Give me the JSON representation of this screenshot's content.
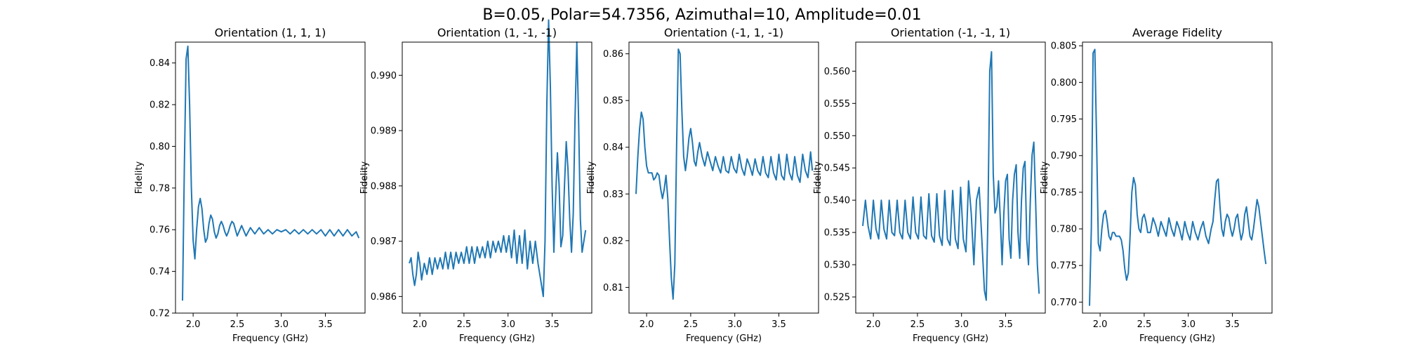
{
  "figure": {
    "suptitle": "B=0.05, Polar=54.7356, Azimuthal=10, Amplitude=0.01",
    "line_color": "#1f77b4"
  },
  "chart_data": [
    {
      "type": "line",
      "title": "Orientation (1, 1, 1)",
      "xlabel": "Frequency (GHz)",
      "ylabel": "Fidelity",
      "xlim": [
        1.8,
        3.95
      ],
      "ylim": [
        0.72,
        0.85
      ],
      "xticks": [
        2.0,
        2.5,
        3.0,
        3.5
      ],
      "xtick_labels": [
        "2.0",
        "2.5",
        "3.0",
        "3.5"
      ],
      "yticks": [
        0.72,
        0.74,
        0.76,
        0.78,
        0.8,
        0.82,
        0.84
      ],
      "ytick_labels": [
        "0.72",
        "0.74",
        "0.76",
        "0.78",
        "0.80",
        "0.82",
        "0.84"
      ],
      "series": [
        {
          "x": [
            1.88,
            1.9,
            1.92,
            1.94,
            1.96,
            1.98,
            2.0,
            2.02,
            2.04,
            2.06,
            2.08,
            2.1,
            2.12,
            2.14,
            2.16,
            2.18,
            2.2,
            2.22,
            2.24,
            2.26,
            2.28,
            2.3,
            2.32,
            2.34,
            2.36,
            2.38,
            2.4,
            2.42,
            2.44,
            2.46,
            2.48,
            2.5,
            2.55,
            2.6,
            2.65,
            2.7,
            2.75,
            2.8,
            2.85,
            2.9,
            2.95,
            3.0,
            3.05,
            3.1,
            3.15,
            3.2,
            3.25,
            3.3,
            3.35,
            3.4,
            3.45,
            3.5,
            3.55,
            3.6,
            3.65,
            3.7,
            3.75,
            3.8,
            3.85,
            3.88
          ],
          "y": [
            0.726,
            0.79,
            0.842,
            0.848,
            0.82,
            0.78,
            0.755,
            0.746,
            0.76,
            0.771,
            0.775,
            0.77,
            0.76,
            0.754,
            0.756,
            0.763,
            0.767,
            0.765,
            0.759,
            0.756,
            0.758,
            0.762,
            0.764,
            0.762,
            0.759,
            0.757,
            0.759,
            0.762,
            0.764,
            0.763,
            0.76,
            0.757,
            0.762,
            0.757,
            0.761,
            0.758,
            0.761,
            0.758,
            0.76,
            0.758,
            0.76,
            0.759,
            0.76,
            0.758,
            0.76,
            0.758,
            0.76,
            0.758,
            0.76,
            0.758,
            0.76,
            0.757,
            0.76,
            0.757,
            0.76,
            0.757,
            0.76,
            0.757,
            0.759,
            0.756
          ]
        }
      ]
    },
    {
      "type": "line",
      "title": "Orientation (1, -1, -1)",
      "xlabel": "Frequency (GHz)",
      "ylabel": "Fidelity",
      "xlim": [
        1.8,
        3.95
      ],
      "ylim": [
        0.9857,
        0.9906
      ],
      "xticks": [
        2.0,
        2.5,
        3.0,
        3.5
      ],
      "xtick_labels": [
        "2.0",
        "2.5",
        "3.0",
        "3.5"
      ],
      "yticks": [
        0.986,
        0.987,
        0.988,
        0.989,
        0.99
      ],
      "ytick_labels": [
        "0.986",
        "0.987",
        "0.988",
        "0.989",
        "0.990"
      ],
      "series": [
        {
          "x": [
            1.88,
            1.9,
            1.92,
            1.94,
            1.96,
            1.98,
            2.0,
            2.02,
            2.05,
            2.08,
            2.11,
            2.14,
            2.17,
            2.2,
            2.23,
            2.26,
            2.29,
            2.32,
            2.35,
            2.38,
            2.41,
            2.44,
            2.47,
            2.5,
            2.53,
            2.56,
            2.59,
            2.62,
            2.65,
            2.68,
            2.71,
            2.74,
            2.77,
            2.8,
            2.83,
            2.86,
            2.89,
            2.92,
            2.95,
            2.98,
            3.01,
            3.04,
            3.07,
            3.1,
            3.13,
            3.16,
            3.19,
            3.22,
            3.25,
            3.28,
            3.31,
            3.34,
            3.37,
            3.4,
            3.42,
            3.44,
            3.46,
            3.48,
            3.5,
            3.52,
            3.54,
            3.56,
            3.58,
            3.6,
            3.62,
            3.64,
            3.66,
            3.68,
            3.7,
            3.72,
            3.74,
            3.76,
            3.78,
            3.8,
            3.82,
            3.84,
            3.86,
            3.88
          ],
          "y": [
            0.9866,
            0.9867,
            0.9864,
            0.9862,
            0.9864,
            0.9868,
            0.9866,
            0.9863,
            0.9866,
            0.9864,
            0.9867,
            0.9864,
            0.9867,
            0.9865,
            0.9867,
            0.9865,
            0.9868,
            0.9865,
            0.9868,
            0.9865,
            0.9868,
            0.9866,
            0.9868,
            0.9866,
            0.9869,
            0.9866,
            0.9869,
            0.9866,
            0.9869,
            0.9867,
            0.9869,
            0.9867,
            0.987,
            0.9867,
            0.987,
            0.9868,
            0.987,
            0.9868,
            0.9871,
            0.9868,
            0.9871,
            0.9867,
            0.9872,
            0.9866,
            0.9871,
            0.9866,
            0.9872,
            0.9865,
            0.987,
            0.9866,
            0.987,
            0.9866,
            0.9863,
            0.986,
            0.987,
            0.9895,
            0.991,
            0.9898,
            0.988,
            0.9868,
            0.9878,
            0.9886,
            0.988,
            0.9869,
            0.9871,
            0.988,
            0.9888,
            0.9883,
            0.9874,
            0.9868,
            0.9875,
            0.9892,
            0.9906,
            0.9892,
            0.9874,
            0.9868,
            0.987,
            0.9872
          ]
        }
      ]
    },
    {
      "type": "line",
      "title": "Orientation (-1, 1, -1)",
      "xlabel": "Frequency (GHz)",
      "ylabel": "Fidelity",
      "xlim": [
        1.8,
        3.95
      ],
      "ylim": [
        0.8045,
        0.8625
      ],
      "xticks": [
        2.0,
        2.5,
        3.0,
        3.5
      ],
      "xtick_labels": [
        "2.0",
        "2.5",
        "3.0",
        "3.5"
      ],
      "yticks": [
        0.81,
        0.82,
        0.83,
        0.84,
        0.85,
        0.86
      ],
      "ytick_labels": [
        "0.81",
        "0.82",
        "0.83",
        "0.84",
        "0.85",
        "0.86"
      ],
      "series": [
        {
          "x": [
            1.88,
            1.9,
            1.92,
            1.94,
            1.96,
            1.98,
            2.0,
            2.02,
            2.04,
            2.06,
            2.08,
            2.1,
            2.12,
            2.14,
            2.16,
            2.18,
            2.2,
            2.22,
            2.24,
            2.26,
            2.28,
            2.3,
            2.32,
            2.34,
            2.36,
            2.38,
            2.4,
            2.42,
            2.44,
            2.46,
            2.48,
            2.5,
            2.52,
            2.54,
            2.56,
            2.58,
            2.6,
            2.63,
            2.66,
            2.69,
            2.72,
            2.75,
            2.78,
            2.81,
            2.84,
            2.87,
            2.9,
            2.93,
            2.96,
            2.99,
            3.02,
            3.05,
            3.08,
            3.11,
            3.14,
            3.17,
            3.2,
            3.23,
            3.26,
            3.29,
            3.32,
            3.35,
            3.38,
            3.41,
            3.44,
            3.47,
            3.5,
            3.53,
            3.56,
            3.59,
            3.62,
            3.65,
            3.68,
            3.71,
            3.74,
            3.77,
            3.8,
            3.83,
            3.86,
            3.88
          ],
          "y": [
            0.83,
            0.838,
            0.844,
            0.8475,
            0.846,
            0.84,
            0.836,
            0.8345,
            0.8345,
            0.8345,
            0.833,
            0.8335,
            0.8345,
            0.834,
            0.831,
            0.829,
            0.831,
            0.834,
            0.829,
            0.82,
            0.812,
            0.8075,
            0.815,
            0.84,
            0.861,
            0.86,
            0.848,
            0.838,
            0.835,
            0.838,
            0.842,
            0.844,
            0.841,
            0.837,
            0.836,
            0.839,
            0.841,
            0.838,
            0.836,
            0.839,
            0.837,
            0.835,
            0.838,
            0.836,
            0.8345,
            0.838,
            0.835,
            0.8345,
            0.838,
            0.8355,
            0.8345,
            0.8385,
            0.8355,
            0.834,
            0.8375,
            0.836,
            0.834,
            0.8375,
            0.835,
            0.834,
            0.838,
            0.8345,
            0.8335,
            0.838,
            0.8345,
            0.833,
            0.8385,
            0.834,
            0.833,
            0.8385,
            0.8345,
            0.833,
            0.838,
            0.834,
            0.8325,
            0.8385,
            0.835,
            0.8335,
            0.839,
            0.835
          ]
        }
      ]
    },
    {
      "type": "line",
      "title": "Orientation (-1, -1, 1)",
      "xlabel": "Frequency (GHz)",
      "ylabel": "Fidelity",
      "xlim": [
        1.8,
        3.95
      ],
      "ylim": [
        0.5225,
        0.5645
      ],
      "xticks": [
        2.0,
        2.5,
        3.0,
        3.5
      ],
      "xtick_labels": [
        "2.0",
        "2.5",
        "3.0",
        "3.5"
      ],
      "yticks": [
        0.525,
        0.53,
        0.535,
        0.54,
        0.545,
        0.55,
        0.555,
        0.56
      ],
      "ytick_labels": [
        "0.525",
        "0.530",
        "0.535",
        "0.540",
        "0.545",
        "0.550",
        "0.555",
        "0.560"
      ],
      "series": [
        {
          "x": [
            1.88,
            1.91,
            1.94,
            1.97,
            2.0,
            2.03,
            2.06,
            2.09,
            2.12,
            2.15,
            2.18,
            2.21,
            2.24,
            2.27,
            2.3,
            2.33,
            2.36,
            2.39,
            2.42,
            2.45,
            2.48,
            2.51,
            2.54,
            2.57,
            2.6,
            2.63,
            2.66,
            2.69,
            2.72,
            2.75,
            2.78,
            2.81,
            2.84,
            2.87,
            2.9,
            2.93,
            2.96,
            2.99,
            3.02,
            3.05,
            3.08,
            3.11,
            3.14,
            3.17,
            3.2,
            3.23,
            3.26,
            3.28,
            3.3,
            3.32,
            3.34,
            3.36,
            3.38,
            3.4,
            3.42,
            3.44,
            3.46,
            3.48,
            3.5,
            3.52,
            3.54,
            3.56,
            3.58,
            3.6,
            3.62,
            3.64,
            3.66,
            3.68,
            3.7,
            3.72,
            3.74,
            3.76,
            3.78,
            3.8,
            3.82,
            3.84,
            3.86,
            3.88
          ],
          "y": [
            0.536,
            0.54,
            0.536,
            0.534,
            0.54,
            0.5355,
            0.534,
            0.54,
            0.5355,
            0.534,
            0.54,
            0.535,
            0.5345,
            0.54,
            0.535,
            0.534,
            0.54,
            0.535,
            0.534,
            0.5405,
            0.535,
            0.534,
            0.5405,
            0.5345,
            0.534,
            0.541,
            0.5345,
            0.5335,
            0.541,
            0.5345,
            0.533,
            0.5415,
            0.534,
            0.533,
            0.5415,
            0.534,
            0.5325,
            0.542,
            0.534,
            0.532,
            0.543,
            0.538,
            0.53,
            0.54,
            0.542,
            0.534,
            0.526,
            0.5245,
            0.538,
            0.56,
            0.563,
            0.544,
            0.538,
            0.539,
            0.543,
            0.537,
            0.53,
            0.538,
            0.543,
            0.544,
            0.534,
            0.531,
            0.54,
            0.544,
            0.5455,
            0.535,
            0.531,
            0.54,
            0.545,
            0.546,
            0.534,
            0.53,
            0.54,
            0.547,
            0.549,
            0.54,
            0.53,
            0.5255
          ]
        }
      ]
    },
    {
      "type": "line",
      "title": "Average Fidelity",
      "xlabel": "Frequency (GHz)",
      "ylabel": "Fidelity",
      "xlim": [
        1.8,
        3.95
      ],
      "ylim": [
        0.7685,
        0.8055
      ],
      "xticks": [
        2.0,
        2.5,
        3.0,
        3.5
      ],
      "xtick_labels": [
        "2.0",
        "2.5",
        "3.0",
        "3.5"
      ],
      "yticks": [
        0.77,
        0.775,
        0.78,
        0.785,
        0.79,
        0.795,
        0.8,
        0.805
      ],
      "ytick_labels": [
        "0.770",
        "0.775",
        "0.780",
        "0.785",
        "0.790",
        "0.795",
        "0.800",
        "0.805"
      ],
      "series": [
        {
          "x": [
            1.88,
            1.9,
            1.92,
            1.94,
            1.96,
            1.98,
            2.0,
            2.02,
            2.04,
            2.06,
            2.08,
            2.1,
            2.12,
            2.14,
            2.16,
            2.18,
            2.2,
            2.22,
            2.24,
            2.26,
            2.28,
            2.3,
            2.32,
            2.34,
            2.36,
            2.38,
            2.4,
            2.42,
            2.44,
            2.46,
            2.48,
            2.5,
            2.52,
            2.54,
            2.57,
            2.6,
            2.63,
            2.66,
            2.69,
            2.72,
            2.75,
            2.78,
            2.81,
            2.84,
            2.87,
            2.9,
            2.93,
            2.96,
            2.99,
            3.02,
            3.05,
            3.08,
            3.11,
            3.14,
            3.17,
            3.2,
            3.23,
            3.26,
            3.28,
            3.3,
            3.32,
            3.34,
            3.36,
            3.38,
            3.4,
            3.42,
            3.44,
            3.46,
            3.48,
            3.5,
            3.52,
            3.54,
            3.56,
            3.58,
            3.6,
            3.62,
            3.64,
            3.66,
            3.68,
            3.7,
            3.72,
            3.74,
            3.76,
            3.78,
            3.8,
            3.82,
            3.84,
            3.86,
            3.88
          ],
          "y": [
            0.7695,
            0.78,
            0.804,
            0.8045,
            0.792,
            0.778,
            0.777,
            0.78,
            0.782,
            0.7825,
            0.781,
            0.779,
            0.7785,
            0.7795,
            0.7795,
            0.779,
            0.779,
            0.779,
            0.7785,
            0.777,
            0.7745,
            0.773,
            0.774,
            0.779,
            0.785,
            0.787,
            0.786,
            0.782,
            0.78,
            0.7795,
            0.7815,
            0.782,
            0.781,
            0.7795,
            0.7795,
            0.7815,
            0.7805,
            0.779,
            0.781,
            0.78,
            0.779,
            0.7815,
            0.78,
            0.779,
            0.781,
            0.78,
            0.7785,
            0.781,
            0.7795,
            0.7785,
            0.781,
            0.7795,
            0.7785,
            0.78,
            0.781,
            0.779,
            0.778,
            0.78,
            0.781,
            0.784,
            0.7865,
            0.7868,
            0.783,
            0.78,
            0.779,
            0.781,
            0.782,
            0.7815,
            0.78,
            0.779,
            0.78,
            0.7815,
            0.782,
            0.78,
            0.7785,
            0.7795,
            0.782,
            0.783,
            0.781,
            0.779,
            0.7785,
            0.78,
            0.782,
            0.784,
            0.783,
            0.781,
            0.779,
            0.777,
            0.7752
          ]
        }
      ]
    }
  ]
}
